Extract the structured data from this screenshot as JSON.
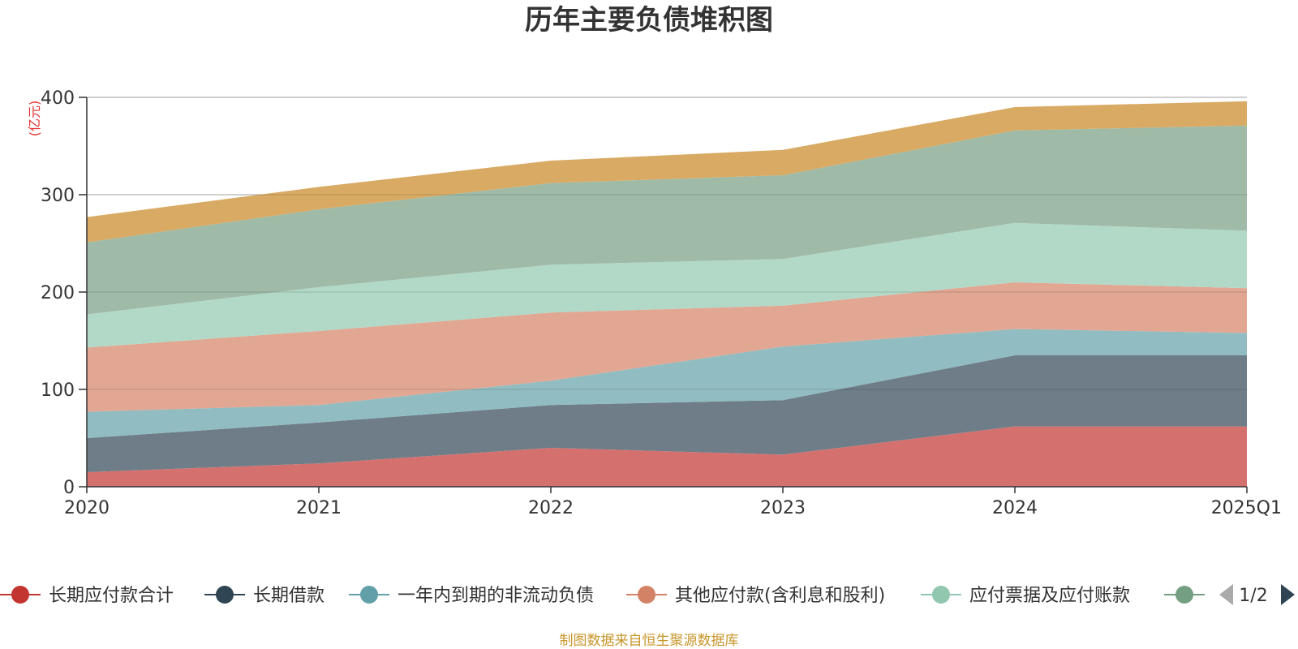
{
  "chart_data": {
    "type": "area",
    "title": "历年主要负债堆积图",
    "unit": "(亿元)",
    "categories": [
      "2020",
      "2021",
      "2022",
      "2023",
      "2024",
      "2025Q1"
    ],
    "ylim": [
      0,
      400
    ],
    "yticks": [
      0,
      100,
      200,
      300,
      400
    ],
    "stacked": true,
    "grid": true,
    "series": [
      {
        "name": "长期应付款合计",
        "color": "#c23531",
        "fill": "#d4716f",
        "values": [
          15,
          24,
          40,
          33,
          62,
          62
        ]
      },
      {
        "name": "长期借款",
        "color": "#2f4554",
        "fill": "#6e7d88",
        "values": [
          35,
          42,
          44,
          56,
          73,
          73
        ]
      },
      {
        "name": "一年内到期的非流动负债",
        "color": "#61a0a8",
        "fill": "#91bcc2",
        "values": [
          27,
          18,
          25,
          55,
          27,
          23
        ]
      },
      {
        "name": "其他应付款(含利息和股利)",
        "color": "#d48265",
        "fill": "#e1a793",
        "values": [
          66,
          76,
          70,
          42,
          48,
          46
        ]
      },
      {
        "name": "应付票据及应付账款",
        "color": "#91c7ae",
        "fill": "#b2d9c7",
        "values": [
          34,
          45,
          49,
          48,
          61,
          59
        ]
      },
      {
        "name": "",
        "color": "#749f83",
        "fill": "#9fbba8",
        "values": [
          74,
          80,
          84,
          86,
          95,
          108
        ]
      },
      {
        "name": "",
        "color": "#ca8622",
        "fill": "#d9aa64",
        "values": [
          26,
          23,
          23,
          26,
          24,
          25
        ]
      }
    ]
  },
  "legend": {
    "visible_count": 6,
    "page": "1/2"
  },
  "source": "制图数据来自恒生聚源数据库",
  "colors": {
    "axis": "#333333",
    "grid": "#cccccc",
    "pager_prev": "#aaaaaa",
    "pager_next": "#2f4554"
  }
}
